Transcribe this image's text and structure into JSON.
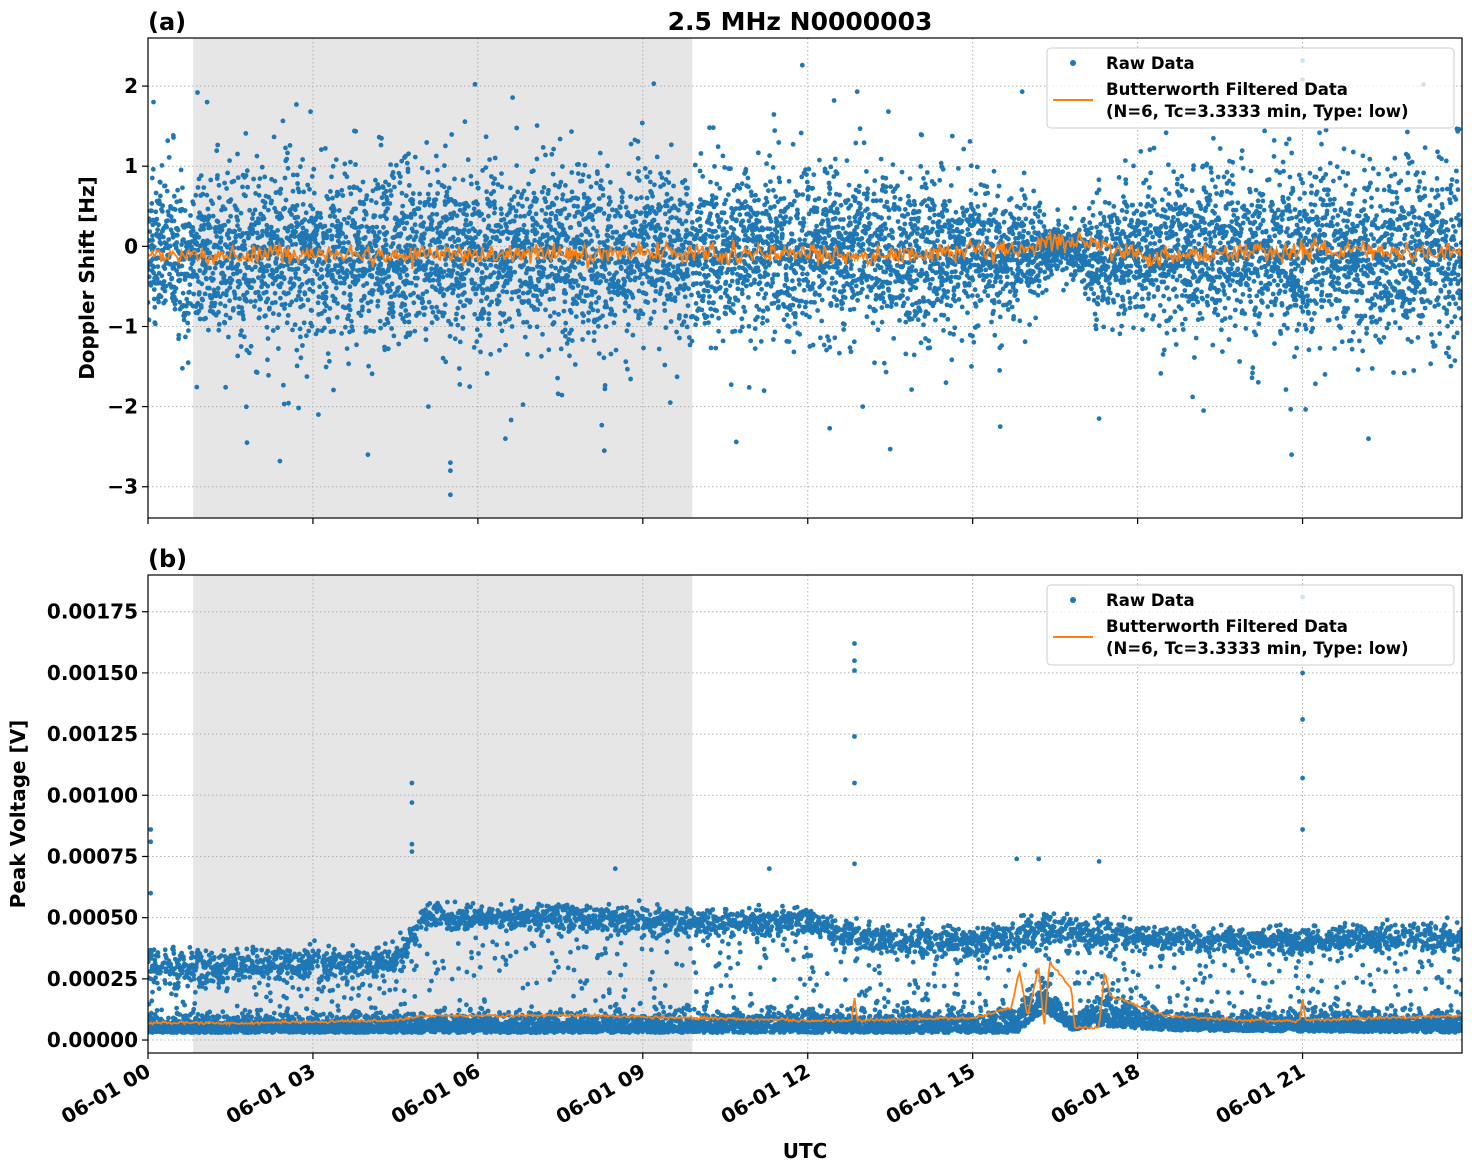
{
  "figure": {
    "title": "2.5 MHz N0000003",
    "xlabel": "UTC"
  },
  "colors": {
    "raw": "#1f77b4",
    "filtered": "#ff7f0e",
    "shade": "#e6e6e6",
    "grid": "#b0b0b0"
  },
  "legend": {
    "raw_label": "Raw Data",
    "filtered_label_line1": "Butterworth Filtered Data",
    "filtered_label_line2": "(N=6, Tc=3.3333 min, Type: low)",
    "placement": "upper-right"
  },
  "chart_data": [
    {
      "type": "scatter",
      "panel_label": "(a)",
      "ylabel": "Doppler Shift [Hz]",
      "x_unit": "hours UTC since 06-01 00",
      "xlim": [
        0,
        23.9
      ],
      "ylim": [
        -3.39,
        2.6
      ],
      "xticks": [
        0,
        3,
        6,
        9,
        12,
        15,
        18,
        21
      ],
      "xtick_labels": [
        "06-01 00",
        "06-01 03",
        "06-01 06",
        "06-01 09",
        "06-01 12",
        "06-01 15",
        "06-01 18",
        "06-01 21"
      ],
      "yticks": [
        2,
        1,
        0,
        -1,
        -2,
        -3
      ],
      "ytick_labels": [
        "2",
        "1",
        "0",
        "−1",
        "−2",
        "−3"
      ],
      "grid": true,
      "shaded_interval": [
        0.82,
        9.9
      ],
      "raw_band": {
        "x": [
          0,
          2,
          4,
          6,
          8,
          10,
          12,
          14,
          15.5,
          16.2,
          16.5,
          16.9,
          17.2,
          17.6,
          18,
          20,
          22,
          23.9
        ],
        "lower": [
          -1.2,
          -1.2,
          -1.2,
          -1.2,
          -1.2,
          -1.1,
          -1.1,
          -1.1,
          -1.0,
          -0.7,
          -0.3,
          -0.4,
          -1.0,
          -0.8,
          -0.9,
          -1.2,
          -1.2,
          -1.2
        ],
        "upper": [
          1.0,
          1.0,
          1.0,
          1.0,
          1.0,
          1.0,
          1.0,
          0.9,
          0.8,
          0.5,
          0.3,
          0.3,
          0.7,
          0.6,
          0.8,
          1.0,
          1.0,
          1.0
        ]
      },
      "raw_outliers": [
        [
          0.1,
          1.8
        ],
        [
          0.9,
          1.92
        ],
        [
          2.7,
          1.77
        ],
        [
          5.5,
          -3.1
        ],
        [
          5.5,
          -2.8
        ],
        [
          5.5,
          -2.7
        ],
        [
          2.4,
          -2.68
        ],
        [
          9.2,
          2.03
        ],
        [
          11.9,
          2.26
        ],
        [
          12.9,
          1.93
        ],
        [
          13.5,
          -2.53
        ],
        [
          15.9,
          1.93
        ],
        [
          21.0,
          2.32
        ],
        [
          21.0,
          2.08
        ],
        [
          23.2,
          2.02
        ],
        [
          20.8,
          -2.6
        ],
        [
          1.8,
          -2.45
        ],
        [
          8.3,
          -2.55
        ],
        [
          4.0,
          -2.6
        ],
        [
          6.5,
          -2.4
        ],
        [
          10.7,
          -2.44
        ],
        [
          12.4,
          -2.27
        ],
        [
          15.5,
          -2.25
        ],
        [
          17.3,
          -2.15
        ],
        [
          22.2,
          -2.4
        ],
        [
          5.1,
          -2.0
        ],
        [
          3.1,
          -2.1
        ],
        [
          9.5,
          -1.95
        ],
        [
          13.0,
          -2.0
        ],
        [
          19.2,
          -2.05
        ]
      ],
      "filtered": {
        "x": [
          0,
          1,
          2,
          3,
          4,
          5,
          6,
          7,
          8,
          9,
          10,
          11,
          12,
          13,
          14,
          15,
          15.8,
          16.3,
          16.6,
          17.0,
          17.3,
          17.6,
          18,
          19,
          20,
          21,
          22,
          23,
          23.9
        ],
        "y": [
          -0.1,
          -0.12,
          -0.1,
          -0.1,
          -0.12,
          -0.1,
          -0.1,
          -0.08,
          -0.1,
          -0.05,
          -0.1,
          -0.1,
          -0.08,
          -0.1,
          -0.12,
          -0.08,
          -0.05,
          0.05,
          0.07,
          0.05,
          0.06,
          -0.1,
          -0.1,
          -0.1,
          -0.08,
          -0.05,
          -0.05,
          -0.1,
          -0.05
        ]
      }
    },
    {
      "type": "scatter",
      "panel_label": "(b)",
      "ylabel": "Peak Voltage [V]",
      "x_unit": "hours UTC since 06-01 00",
      "xlim": [
        0,
        23.9
      ],
      "ylim": [
        -5.3e-05,
        0.0019
      ],
      "xticks": [
        0,
        3,
        6,
        9,
        12,
        15,
        18,
        21
      ],
      "xtick_labels": [
        "06-01 00",
        "06-01 03",
        "06-01 06",
        "06-01 09",
        "06-01 12",
        "06-01 15",
        "06-01 18",
        "06-01 21"
      ],
      "yticks": [
        0,
        0.00025,
        0.0005,
        0.00075,
        0.001,
        0.00125,
        0.0015,
        0.00175
      ],
      "ytick_labels": [
        "0.00000",
        "0.00025",
        "0.00050",
        "0.00075",
        "0.00100",
        "0.00125",
        "0.00150",
        "0.00175"
      ],
      "grid": true,
      "shaded_interval": [
        0.82,
        9.9
      ],
      "raw_lower_band": {
        "x": [
          0,
          15.8,
          16.3,
          16.8,
          17.3,
          18.5,
          23.9
        ],
        "lower": [
          3e-05,
          3e-05,
          0.00012,
          4e-05,
          6e-05,
          4e-05,
          3e-05
        ],
        "upper": [
          0.00014,
          0.00018,
          0.00032,
          0.00012,
          0.00028,
          0.00016,
          0.00016
        ]
      },
      "raw_upper_cluster": {
        "x": [
          0,
          2,
          4.5,
          5,
          8,
          10,
          12,
          13,
          15,
          16.5,
          17.5,
          20,
          23.9
        ],
        "center": [
          0.0003,
          0.0003,
          0.00032,
          0.0005,
          0.0005,
          0.00048,
          0.00048,
          0.00042,
          0.0004,
          0.00045,
          0.00043,
          0.0004,
          0.00042
        ],
        "spread": [
          0.0001,
          0.0001,
          0.0001,
          8e-05,
          8e-05,
          8e-05,
          8e-05,
          8e-05,
          8e-05,
          0.0001,
          8e-05,
          8e-05,
          8e-05
        ]
      },
      "raw_outliers": [
        [
          0.05,
          0.00086
        ],
        [
          0.05,
          0.00081
        ],
        [
          0.05,
          0.0006
        ],
        [
          4.8,
          0.00105
        ],
        [
          4.8,
          0.00097
        ],
        [
          4.8,
          0.0008
        ],
        [
          4.8,
          0.00077
        ],
        [
          12.85,
          0.00162
        ],
        [
          12.85,
          0.00155
        ],
        [
          12.85,
          0.00151
        ],
        [
          12.85,
          0.00124
        ],
        [
          12.85,
          0.00105
        ],
        [
          12.85,
          0.00072
        ],
        [
          21.0,
          0.00181
        ],
        [
          21.0,
          0.0015
        ],
        [
          21.0,
          0.00131
        ],
        [
          21.0,
          0.00107
        ],
        [
          21.0,
          0.00086
        ],
        [
          15.8,
          0.00074
        ],
        [
          16.2,
          0.00074
        ],
        [
          17.3,
          0.00073
        ],
        [
          11.3,
          0.0007
        ],
        [
          8.5,
          0.0007
        ]
      ],
      "filtered": {
        "x": [
          0,
          2,
          4.5,
          5,
          8,
          10,
          12,
          12.8,
          12.85,
          12.9,
          15,
          15.7,
          15.85,
          16.0,
          16.2,
          16.3,
          16.4,
          16.8,
          16.85,
          17.3,
          17.4,
          17.5,
          18,
          18.5,
          20,
          20.95,
          21.0,
          21.05,
          23.9
        ],
        "y": [
          7e-05,
          7e-05,
          8e-05,
          0.0001,
          0.0001,
          9e-05,
          8e-05,
          8e-05,
          0.00018,
          8e-05,
          9e-05,
          0.00013,
          0.00028,
          0.0001,
          0.0003,
          5e-05,
          0.00032,
          0.00021,
          5e-05,
          5e-05,
          0.00028,
          0.00018,
          0.00014,
          0.0001,
          8e-05,
          8e-05,
          0.00018,
          8e-05,
          0.0001
        ]
      }
    }
  ]
}
